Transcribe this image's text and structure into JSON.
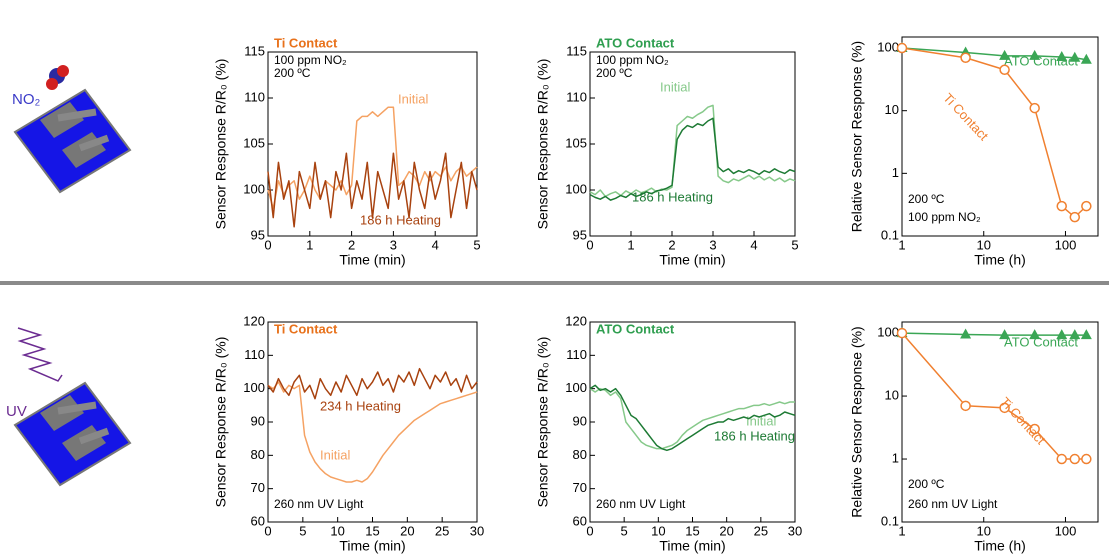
{
  "illustrations": [
    {
      "label": "NO₂"
    },
    {
      "label": "UV"
    }
  ],
  "chart_data": [
    {
      "type": "line",
      "title": "Ti Contact",
      "title_color": "#e8711a",
      "annotations": [
        "100 ppm NO₂",
        "200 ºC"
      ],
      "xlabel": "Time (min)",
      "ylabel": "Sensor Response R/R₀ (%)",
      "xlim": [
        0,
        5
      ],
      "ylim": [
        95,
        115
      ],
      "xticks": [
        0,
        1,
        2,
        3,
        4,
        5
      ],
      "yticks": [
        95,
        100,
        105,
        110,
        115
      ],
      "x": [
        0,
        0.125,
        0.25,
        0.375,
        0.5,
        0.625,
        0.75,
        0.875,
        1,
        1.125,
        1.25,
        1.375,
        1.5,
        1.625,
        1.75,
        1.875,
        2,
        2.125,
        2.25,
        2.375,
        2.5,
        2.625,
        2.75,
        2.875,
        3,
        3.125,
        3.25,
        3.375,
        3.5,
        3.625,
        3.75,
        3.875,
        4,
        4.125,
        4.25,
        4.375,
        4.5,
        4.625,
        4.75,
        4.875,
        5
      ],
      "series": [
        {
          "name": "Initial",
          "color": "#f5a263",
          "values": [
            100,
            98,
            101,
            99.5,
            100.5,
            101,
            99,
            100,
            101.5,
            100,
            99,
            101,
            100.5,
            100,
            101,
            99.5,
            100.5,
            107.5,
            108,
            108,
            108.5,
            108,
            108.5,
            109,
            109,
            100.5,
            101,
            102,
            101.5,
            100.5,
            102,
            101,
            102,
            101.5,
            102.5,
            101,
            102,
            102.5,
            101.5,
            102,
            102.5
          ]
        },
        {
          "name": "186 h Heating",
          "color": "#a8420f",
          "values": [
            102,
            97,
            103,
            99,
            101,
            96,
            102,
            100,
            98,
            103,
            99,
            101,
            97,
            102,
            100,
            104,
            98,
            101,
            99,
            103,
            97,
            102,
            100,
            98,
            104,
            99,
            101,
            97,
            103,
            100,
            98,
            102,
            99,
            101,
            104,
            97,
            100,
            103,
            98,
            102,
            100
          ]
        }
      ]
    },
    {
      "type": "line",
      "title": "ATO Contact",
      "title_color": "#2e9e4f",
      "annotations": [
        "100 ppm NO₂",
        "200 ºC"
      ],
      "xlabel": "Time (min)",
      "ylabel": "Sensor Response R/R₀ (%)",
      "xlim": [
        0,
        5
      ],
      "ylim": [
        95,
        115
      ],
      "xticks": [
        0,
        1,
        2,
        3,
        4,
        5
      ],
      "yticks": [
        95,
        100,
        105,
        110,
        115
      ],
      "x": [
        0,
        0.125,
        0.25,
        0.375,
        0.5,
        0.625,
        0.75,
        0.875,
        1,
        1.125,
        1.25,
        1.375,
        1.5,
        1.625,
        1.75,
        1.875,
        2,
        2.125,
        2.25,
        2.375,
        2.5,
        2.625,
        2.75,
        2.875,
        3,
        3.125,
        3.25,
        3.375,
        3.5,
        3.625,
        3.75,
        3.875,
        4,
        4.125,
        4.25,
        4.375,
        4.5,
        4.625,
        4.75,
        4.875,
        5
      ],
      "series": [
        {
          "name": "Initial",
          "color": "#86c98a",
          "values": [
            99.8,
            99.5,
            100,
            99.3,
            99.6,
            99.8,
            99.4,
            99.9,
            99.6,
            100,
            99.7,
            99.9,
            100.2,
            99.8,
            100.1,
            100,
            100.3,
            107,
            107.5,
            108,
            107.8,
            108.2,
            108.5,
            109,
            109.2,
            101.5,
            101,
            100.8,
            101.2,
            101,
            101.3,
            101.6,
            101.2,
            101.5,
            101.1,
            101.4,
            101,
            101.3,
            100.9,
            101.2,
            101
          ]
        },
        {
          "name": "186 h Heating",
          "color": "#1d7a34",
          "values": [
            99.5,
            99.2,
            99,
            99.3,
            98.9,
            99.1,
            99.4,
            99.2,
            99.6,
            99.3,
            99.5,
            99.8,
            99.6,
            99.9,
            100,
            100.2,
            100.5,
            105.5,
            106.5,
            107,
            106.8,
            107.2,
            107,
            107.5,
            107.8,
            102.5,
            102,
            102.3,
            101.8,
            102.1,
            101.9,
            102.2,
            102,
            101.7,
            102.1,
            101.9,
            102.3,
            102,
            101.8,
            102.2,
            102
          ]
        }
      ]
    },
    {
      "type": "line",
      "log_x": true,
      "log_y": true,
      "annotations": [
        "200 ºC",
        "100 ppm NO₂"
      ],
      "xlabel": "Time (h)",
      "ylabel": "Relative Sensor Response (%)",
      "xlim": [
        1,
        250
      ],
      "ylim": [
        0.1,
        150
      ],
      "xticks": [
        1,
        10,
        100
      ],
      "yticks": [
        0.1,
        1,
        10,
        100
      ],
      "x": [
        1,
        6,
        18,
        42,
        90,
        130,
        180
      ],
      "series": [
        {
          "name": "ATO Contact",
          "color": "#3aa655",
          "marker": "triangle",
          "values": [
            100,
            85,
            75,
            75,
            72,
            70,
            65
          ]
        },
        {
          "name": "Ti Contact",
          "color": "#f08030",
          "marker": "circle",
          "values": [
            100,
            70,
            45,
            11,
            0.3,
            0.2,
            0.3
          ]
        }
      ]
    },
    {
      "type": "line",
      "title": "Ti Contact",
      "title_color": "#e8711a",
      "annotations": [
        "260 nm UV Light"
      ],
      "xlabel": "Time (min)",
      "ylabel": "Sensor Response R/R₀ (%)",
      "xlim": [
        0,
        30
      ],
      "ylim": [
        60,
        120
      ],
      "xticks": [
        0,
        5,
        10,
        15,
        20,
        25,
        30
      ],
      "yticks": [
        60,
        70,
        80,
        90,
        100,
        110,
        120
      ],
      "x": [
        0,
        0.75,
        1.5,
        2.25,
        3,
        3.75,
        4.5,
        5.25,
        6,
        6.75,
        7.5,
        8.25,
        9,
        9.75,
        10.5,
        11.25,
        12,
        12.75,
        13.5,
        14.25,
        15,
        15.75,
        16.5,
        17.25,
        18,
        18.75,
        19.5,
        20.25,
        21,
        21.75,
        22.5,
        23.25,
        24,
        24.75,
        25.5,
        26.25,
        27,
        27.75,
        28.5,
        29.25,
        30
      ],
      "series": [
        {
          "name": "Initial",
          "color": "#f5a263",
          "values": [
            101,
            100,
            102,
            99,
            101,
            100,
            101,
            86,
            81,
            78,
            76,
            74.5,
            73.5,
            73,
            72.5,
            72,
            72,
            72.5,
            72,
            73,
            75,
            77.5,
            80,
            82,
            84,
            86,
            87.5,
            89,
            90.5,
            91.5,
            92.5,
            93.5,
            94.5,
            95.5,
            96,
            96.5,
            97,
            97.5,
            98,
            98.5,
            99
          ]
        },
        {
          "name": "234 h Heating",
          "color": "#a8420f",
          "values": [
            101,
            99,
            103,
            100,
            98,
            102,
            104,
            99,
            101,
            97,
            103,
            100,
            98,
            102,
            99,
            104,
            101,
            98,
            103,
            100,
            102,
            105,
            101,
            103,
            99,
            104,
            102,
            105,
            101,
            106,
            103,
            100,
            104,
            102,
            105,
            101,
            103,
            99,
            104,
            100,
            102
          ]
        }
      ]
    },
    {
      "type": "line",
      "title": "ATO Contact",
      "title_color": "#2e9e4f",
      "annotations": [
        "260 nm UV Light"
      ],
      "xlabel": "Time (min)",
      "ylabel": "Sensor Response R/R₀ (%)",
      "xlim": [
        0,
        30
      ],
      "ylim": [
        60,
        120
      ],
      "xticks": [
        0,
        5,
        10,
        15,
        20,
        25,
        30
      ],
      "yticks": [
        60,
        70,
        80,
        90,
        100,
        110,
        120
      ],
      "x": [
        0,
        0.75,
        1.5,
        2.25,
        3,
        3.75,
        4.5,
        5.25,
        6,
        6.75,
        7.5,
        8.25,
        9,
        9.75,
        10.5,
        11.25,
        12,
        12.75,
        13.5,
        14.25,
        15,
        15.75,
        16.5,
        17.25,
        18,
        18.75,
        19.5,
        20.25,
        21,
        21.75,
        22.5,
        23.25,
        24,
        24.75,
        25.5,
        26.25,
        27,
        27.75,
        28.5,
        29.25,
        30
      ],
      "series": [
        {
          "name": "Initial",
          "color": "#86c98a",
          "values": [
            100,
            99,
            100,
            99.5,
            98,
            99,
            97,
            90,
            88,
            86,
            84,
            83,
            82.5,
            82,
            82,
            82.5,
            83,
            84,
            86,
            87.5,
            88.5,
            89.5,
            90.5,
            91,
            91.5,
            92,
            92.5,
            93,
            93.5,
            94,
            94,
            94.5,
            95,
            95,
            95.5,
            95,
            95.5,
            96,
            95.5,
            96,
            96
          ]
        },
        {
          "name": "186 h Heating",
          "color": "#1d7a34",
          "values": [
            100,
            101,
            99.5,
            100,
            99,
            100,
            98,
            95,
            92,
            91,
            89,
            87,
            85,
            83,
            82,
            81.5,
            82,
            83,
            84,
            85,
            86,
            87,
            88,
            89,
            89.5,
            90,
            90,
            91,
            90.5,
            91,
            91.5,
            91,
            92,
            91.5,
            92,
            92.5,
            91.5,
            92,
            93,
            92.5,
            92
          ]
        }
      ]
    },
    {
      "type": "line",
      "log_x": true,
      "log_y": true,
      "annotations": [
        "200 ºC",
        "260 nm UV Light"
      ],
      "xlabel": "Time (h)",
      "ylabel": "Relative Sensor Response (%)",
      "xlim": [
        1,
        250
      ],
      "ylim": [
        0.1,
        150
      ],
      "xticks": [
        1,
        10,
        100
      ],
      "yticks": [
        0.1,
        1,
        10,
        100
      ],
      "x": [
        1,
        6,
        18,
        42,
        90,
        130,
        180
      ],
      "series": [
        {
          "name": "ATO Contact",
          "color": "#3aa655",
          "marker": "triangle",
          "values": [
            100,
            95,
            93,
            93,
            93,
            93,
            93
          ]
        },
        {
          "name": "Ti Contact",
          "color": "#f08030",
          "marker": "circle",
          "values": [
            100,
            7,
            6.5,
            3,
            1,
            1,
            1
          ]
        }
      ]
    }
  ]
}
